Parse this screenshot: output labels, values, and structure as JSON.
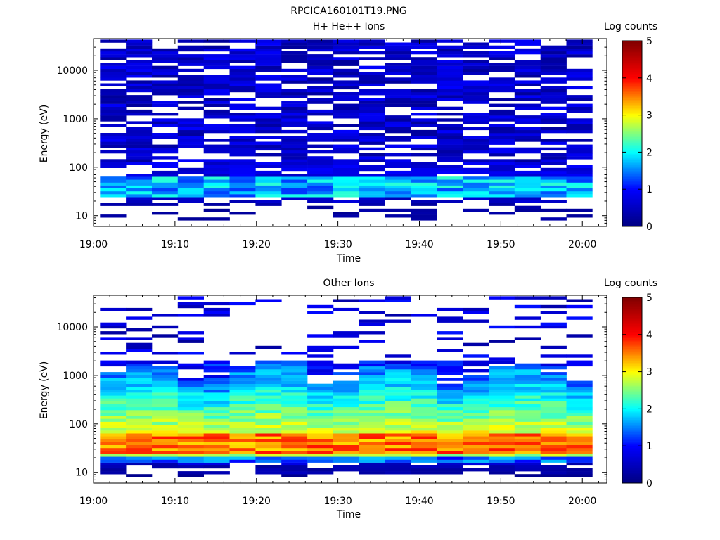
{
  "figure": {
    "title": "RPCICA160101T19.PNG"
  },
  "colors": {
    "colormap": [
      "#000080",
      "#0000ff",
      "#00ffff",
      "#ffff00",
      "#ff0000",
      "#800000"
    ],
    "background": "#ffffff",
    "axes": "#000000"
  },
  "chart_data": [
    {
      "type": "heatmap",
      "title": "H+ He++ Ions",
      "xlabel": "Time",
      "ylabel": "Energy (eV)",
      "yscale": "log",
      "xlim": [
        "19:00",
        "20:03"
      ],
      "ylim": [
        6,
        45000
      ],
      "x_ticks": [
        "19:00",
        "19:10",
        "19:20",
        "19:30",
        "19:40",
        "19:50",
        "20:00"
      ],
      "y_ticks": [
        "10",
        "100",
        "1000",
        "10000"
      ],
      "grid": false,
      "colorbar": {
        "label": "Log counts",
        "range": [
          0,
          5
        ],
        "ticks": [
          "0",
          "1",
          "2",
          "3",
          "4",
          "5"
        ]
      },
      "description_of_values": "Log counts per time bin (~3.2 min) and energy channel; scattered low counts (0-1.2) at high energies, band of ~1.5-2.2 around 20-60 eV"
    },
    {
      "type": "heatmap",
      "title": "Other Ions",
      "xlabel": "Time",
      "ylabel": "Energy (eV)",
      "yscale": "log",
      "xlim": [
        "19:00",
        "20:03"
      ],
      "ylim": [
        6,
        45000
      ],
      "x_ticks": [
        "19:00",
        "19:10",
        "19:20",
        "19:30",
        "19:40",
        "19:50",
        "20:00"
      ],
      "y_ticks": [
        "10",
        "100",
        "1000",
        "10000"
      ],
      "grid": false,
      "colorbar": {
        "label": "Log counts",
        "range": [
          0,
          5
        ],
        "ticks": [
          "0",
          "1",
          "2",
          "3",
          "4",
          "5"
        ]
      },
      "description_of_values": "Broad population from ~20 eV to ~1500 eV, peak log counts ~3.5-4 near 30-60 eV, decreasing to ~2 near 1000 eV; sparse low counts above 3000 eV"
    }
  ]
}
